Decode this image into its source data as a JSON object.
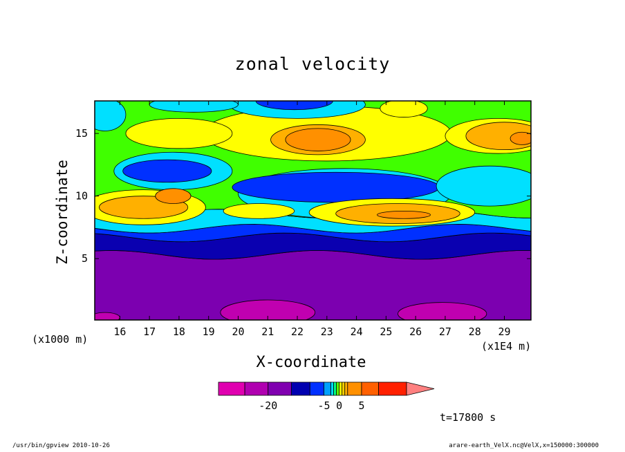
{
  "chart_data": {
    "type": "heatmap",
    "title": "zonal velocity",
    "xlabel": "X-coordinate",
    "ylabel": "Z-coordinate",
    "x_unit_label": "(x1E4 m)",
    "y_unit_label": "(x1000 m)",
    "xlim": [
      15.15,
      29.9
    ],
    "ylim": [
      0.1,
      17.6
    ],
    "x_ticks": [
      16,
      17,
      18,
      19,
      20,
      21,
      22,
      23,
      24,
      25,
      26,
      27,
      28,
      29
    ],
    "y_ticks": [
      5,
      10,
      15
    ],
    "time_label": "t=17800 s",
    "colorbar": {
      "levels": [
        -30,
        -25,
        -20,
        -15,
        -10,
        -5,
        -3,
        -2,
        -1,
        0,
        1,
        2,
        3,
        5,
        10,
        15,
        20
      ],
      "colors": [
        "#e000b0",
        "#b000b0",
        "#8000b0",
        "#0000b0",
        "#0030ff",
        "#00a0ff",
        "#00e0ff",
        "#00ff80",
        "#60ff00",
        "#ffff00",
        "#ffd000",
        "#ffb000",
        "#ff9000",
        "#ff6000",
        "#ff2000",
        "#ff8080"
      ],
      "tick_labels": [
        {
          "value": -20,
          "label": "-20"
        },
        {
          "value": -5,
          "label": "-5"
        },
        {
          "value": 0,
          "label": "0"
        },
        {
          "value": 5,
          "label": "5"
        }
      ]
    },
    "bands": [
      {
        "z_bottom": 0.1,
        "z_top": 5.3,
        "color": "#7c00b0"
      },
      {
        "z_bottom": 5.3,
        "z_top": 6.7,
        "color": "#0a00b0"
      },
      {
        "z_bottom": 6.7,
        "z_top": 7.4,
        "color": "#0030ff"
      },
      {
        "z_bottom": 7.4,
        "z_top": 8.6,
        "color": "#00e0ff"
      },
      {
        "z_bottom": 8.6,
        "z_top": 17.6,
        "color": "#40ff00"
      }
    ],
    "blobs": [
      {
        "x": 21.0,
        "z": 0.7,
        "rx": 1.6,
        "rz": 1.0,
        "color": "#c000b0"
      },
      {
        "x": 15.5,
        "z": 0.3,
        "rx": 0.5,
        "rz": 0.4,
        "color": "#c000b0"
      },
      {
        "x": 26.9,
        "z": 0.6,
        "rx": 1.5,
        "rz": 0.9,
        "color": "#c000b0"
      },
      {
        "x": 23.0,
        "z": 15.0,
        "rx": 4.2,
        "rz": 2.2,
        "color": "#ffff00"
      },
      {
        "x": 23.6,
        "z": 10.2,
        "rx": 3.6,
        "rz": 2.0,
        "color": "#00e0ff"
      },
      {
        "x": 23.3,
        "z": 10.7,
        "rx": 3.5,
        "rz": 1.2,
        "color": "#0030ff"
      },
      {
        "x": 17.8,
        "z": 12.0,
        "rx": 2.0,
        "rz": 1.5,
        "color": "#00e0ff"
      },
      {
        "x": 17.6,
        "z": 12.0,
        "rx": 1.5,
        "rz": 0.9,
        "color": "#0030ff"
      },
      {
        "x": 18.0,
        "z": 15.0,
        "rx": 1.8,
        "rz": 1.2,
        "color": "#ffff00"
      },
      {
        "x": 22.7,
        "z": 14.5,
        "rx": 1.6,
        "rz": 1.2,
        "color": "#ffb000"
      },
      {
        "x": 22.7,
        "z": 14.5,
        "rx": 1.1,
        "rz": 0.9,
        "color": "#ff9000"
      },
      {
        "x": 22.0,
        "z": 17.3,
        "rx": 2.3,
        "rz": 1.1,
        "color": "#00e0ff"
      },
      {
        "x": 21.9,
        "z": 17.6,
        "rx": 1.3,
        "rz": 0.7,
        "color": "#0030ff"
      },
      {
        "x": 18.5,
        "z": 17.3,
        "rx": 1.5,
        "rz": 0.6,
        "color": "#00e0ff"
      },
      {
        "x": 15.5,
        "z": 16.5,
        "rx": 0.7,
        "rz": 1.3,
        "color": "#00e0ff"
      },
      {
        "x": 28.5,
        "z": 10.8,
        "rx": 1.8,
        "rz": 1.6,
        "color": "#00e0ff"
      },
      {
        "x": 28.8,
        "z": 14.8,
        "rx": 1.8,
        "rz": 1.4,
        "color": "#ffff00"
      },
      {
        "x": 29.0,
        "z": 14.8,
        "rx": 1.3,
        "rz": 1.1,
        "color": "#ffb000"
      },
      {
        "x": 29.6,
        "z": 14.6,
        "rx": 0.4,
        "rz": 0.5,
        "color": "#ff9000"
      },
      {
        "x": 16.8,
        "z": 9.1,
        "rx": 2.1,
        "rz": 1.4,
        "color": "#ffff00"
      },
      {
        "x": 16.8,
        "z": 9.1,
        "rx": 1.5,
        "rz": 0.9,
        "color": "#ffb000"
      },
      {
        "x": 17.8,
        "z": 10.0,
        "rx": 0.6,
        "rz": 0.6,
        "color": "#ff9000"
      },
      {
        "x": 25.2,
        "z": 8.7,
        "rx": 2.8,
        "rz": 1.1,
        "color": "#ffff00"
      },
      {
        "x": 25.4,
        "z": 8.6,
        "rx": 2.1,
        "rz": 0.8,
        "color": "#ffb000"
      },
      {
        "x": 25.6,
        "z": 8.5,
        "rx": 0.9,
        "rz": 0.3,
        "color": "#ff9000"
      },
      {
        "x": 20.7,
        "z": 8.8,
        "rx": 1.2,
        "rz": 0.6,
        "color": "#ffff00"
      },
      {
        "x": 25.6,
        "z": 17.0,
        "rx": 0.8,
        "rz": 0.7,
        "color": "#ffff00"
      }
    ],
    "grid": false,
    "legend": "colorbar-bottom"
  },
  "footer": {
    "left": "/usr/bin/gpview   2010-10-26",
    "right": "arare-earth_VelX.nc@VelX,x=150000:300000"
  }
}
